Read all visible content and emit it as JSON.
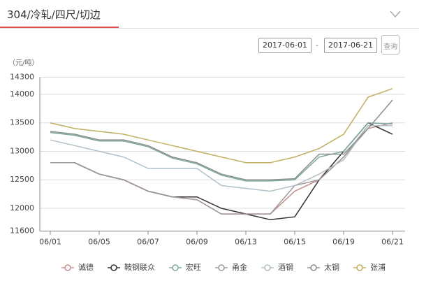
{
  "header": {
    "title": "304/冷轧/四尺/切边"
  },
  "filter": {
    "date_from": "2017-06-01",
    "separator": "-",
    "date_to": "2017-06-21",
    "query_button": "查询"
  },
  "chart_data": {
    "type": "line",
    "y_label": "（元/吨）",
    "categories": [
      "06/01",
      null,
      "06/05",
      null,
      "06/07",
      null,
      "06/09",
      null,
      "06/13",
      null,
      "06/15",
      null,
      "06/19",
      null,
      "06/21"
    ],
    "ylim": [
      11600,
      14300
    ],
    "yticks": [
      11600,
      12000,
      12500,
      13000,
      13500,
      14000,
      14300
    ],
    "grid": true,
    "series": [
      {
        "name": "诚德",
        "color": "#c49090",
        "values": [
          12800,
          12800,
          12600,
          12500,
          12300,
          12200,
          12150,
          11900,
          11900,
          11900,
          12300,
          12500,
          12900,
          13400,
          13500
        ]
      },
      {
        "name": "鞍钢联众",
        "color": "#333333",
        "values": [
          12800,
          12800,
          12600,
          12500,
          12300,
          12200,
          12200,
          12000,
          11900,
          11800,
          11850,
          12500,
          13000,
          13500,
          13300
        ]
      },
      {
        "name": "宏旺",
        "color": "#7fa8a0",
        "values": [
          13330,
          13280,
          13180,
          13180,
          13080,
          12880,
          12780,
          12580,
          12480,
          12480,
          12500,
          12900,
          13000,
          13500,
          13480
        ]
      },
      {
        "name": "甬金",
        "color": "#a09898",
        "values": [
          12800,
          12800,
          12600,
          12500,
          12300,
          12200,
          12150,
          11900,
          11900,
          11900,
          12400,
          12500,
          12900,
          13450,
          13450
        ]
      },
      {
        "name": "酒钢",
        "color": "#b0c0c8",
        "values": [
          13200,
          13100,
          13000,
          12900,
          12700,
          12700,
          12700,
          12400,
          12350,
          12300,
          12400,
          12600,
          12850,
          13450,
          13450
        ]
      },
      {
        "name": "太钢",
        "color": "#8a9090",
        "values": [
          13350,
          13300,
          13200,
          13200,
          13100,
          12900,
          12800,
          12600,
          12500,
          12500,
          12520,
          12950,
          12950,
          13400,
          13900
        ]
      },
      {
        "name": "张浦",
        "color": "#c0b060",
        "values": [
          13500,
          13400,
          13350,
          13300,
          13200,
          13100,
          13000,
          12900,
          12800,
          12800,
          12900,
          13050,
          13300,
          13950,
          14100
        ]
      }
    ]
  }
}
